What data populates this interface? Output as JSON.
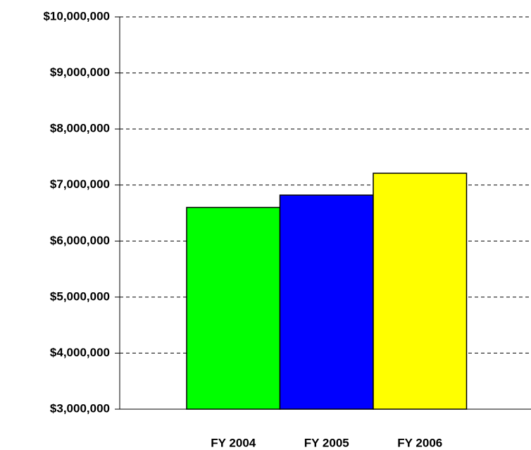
{
  "chart_data": {
    "type": "bar",
    "categories": [
      "FY 2004",
      "FY 2005",
      "FY 2006"
    ],
    "values": [
      6600000,
      6820000,
      7210000
    ],
    "colors": [
      "#00ff00",
      "#0000ff",
      "#ffff00"
    ],
    "ylim": [
      3000000,
      10000000
    ],
    "yticks": [
      {
        "value": 3000000,
        "label": "$3,000,000"
      },
      {
        "value": 4000000,
        "label": "$4,000,000"
      },
      {
        "value": 5000000,
        "label": "$5,000,000"
      },
      {
        "value": 6000000,
        "label": "$6,000,000"
      },
      {
        "value": 7000000,
        "label": "$7,000,000"
      },
      {
        "value": 8000000,
        "label": "$8,000,000"
      },
      {
        "value": 9000000,
        "label": "$9,000,000"
      },
      {
        "value": 10000000,
        "label": "$10,000,000"
      }
    ],
    "grid": true
  }
}
